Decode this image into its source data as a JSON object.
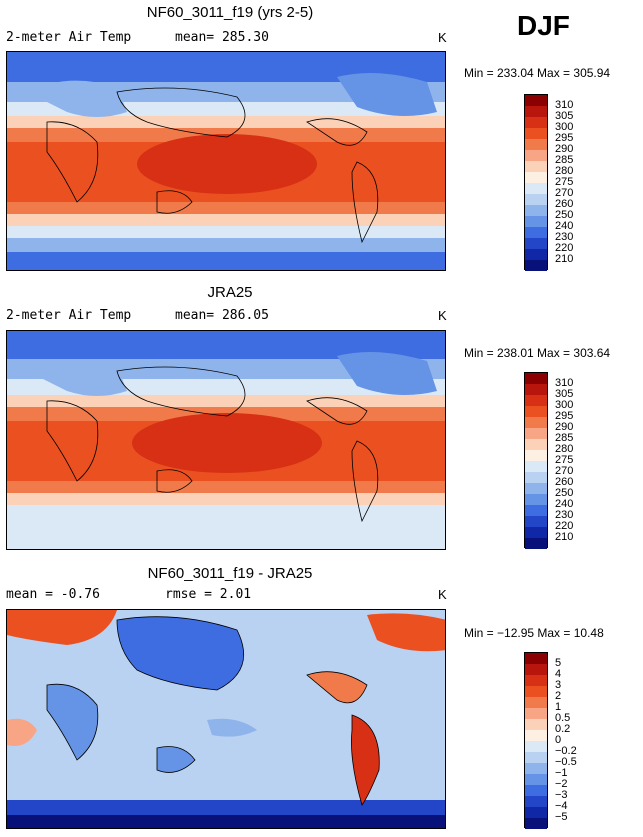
{
  "season": "DJF",
  "panels": [
    {
      "title": "NF60_3011_f19 (yrs 2-5)",
      "left_label": "2-meter Air Temp",
      "mid_label": "mean= 285.30",
      "unit": "K",
      "minmax": "Min = 233.04  Max = 305.94"
    },
    {
      "title": "JRA25",
      "left_label": "2-meter Air Temp",
      "mid_label": "mean= 286.05",
      "unit": "K",
      "minmax": "Min = 238.01  Max = 303.64"
    },
    {
      "title": "NF60_3011_f19 - JRA25",
      "left_label": "mean =   -0.76",
      "mid_label": "rmse =    2.01",
      "unit": "K",
      "minmax": "Min = −12.95  Max =  10.48"
    }
  ],
  "abs_colorbar": {
    "labels": [
      "310",
      "305",
      "300",
      "295",
      "290",
      "285",
      "280",
      "275",
      "270",
      "260",
      "250",
      "240",
      "230",
      "220",
      "210"
    ],
    "colors": [
      "#8b0000",
      "#b8160d",
      "#d73014",
      "#ea5020",
      "#f07a4a",
      "#f8a586",
      "#fbd1b8",
      "#fdf0e2",
      "#dbe9f7",
      "#b9d2f1",
      "#8fb4ec",
      "#6593e6",
      "#3d6de0",
      "#2346c8",
      "#1028a8",
      "#08107a"
    ]
  },
  "diff_colorbar": {
    "labels": [
      "5",
      "4",
      "3",
      "2",
      "1",
      "0.5",
      "0.2",
      "0",
      "−0.2",
      "−0.5",
      "−1",
      "−2",
      "−3",
      "−4",
      "−5"
    ],
    "colors": [
      "#8b0000",
      "#b8160d",
      "#d73014",
      "#ea5020",
      "#f07a4a",
      "#f8a586",
      "#fbd1b8",
      "#fdf0e2",
      "#dbe9f7",
      "#b9d2f1",
      "#8fb4ec",
      "#6593e6",
      "#3d6de0",
      "#2346c8",
      "#1028a8",
      "#08107a"
    ]
  }
}
